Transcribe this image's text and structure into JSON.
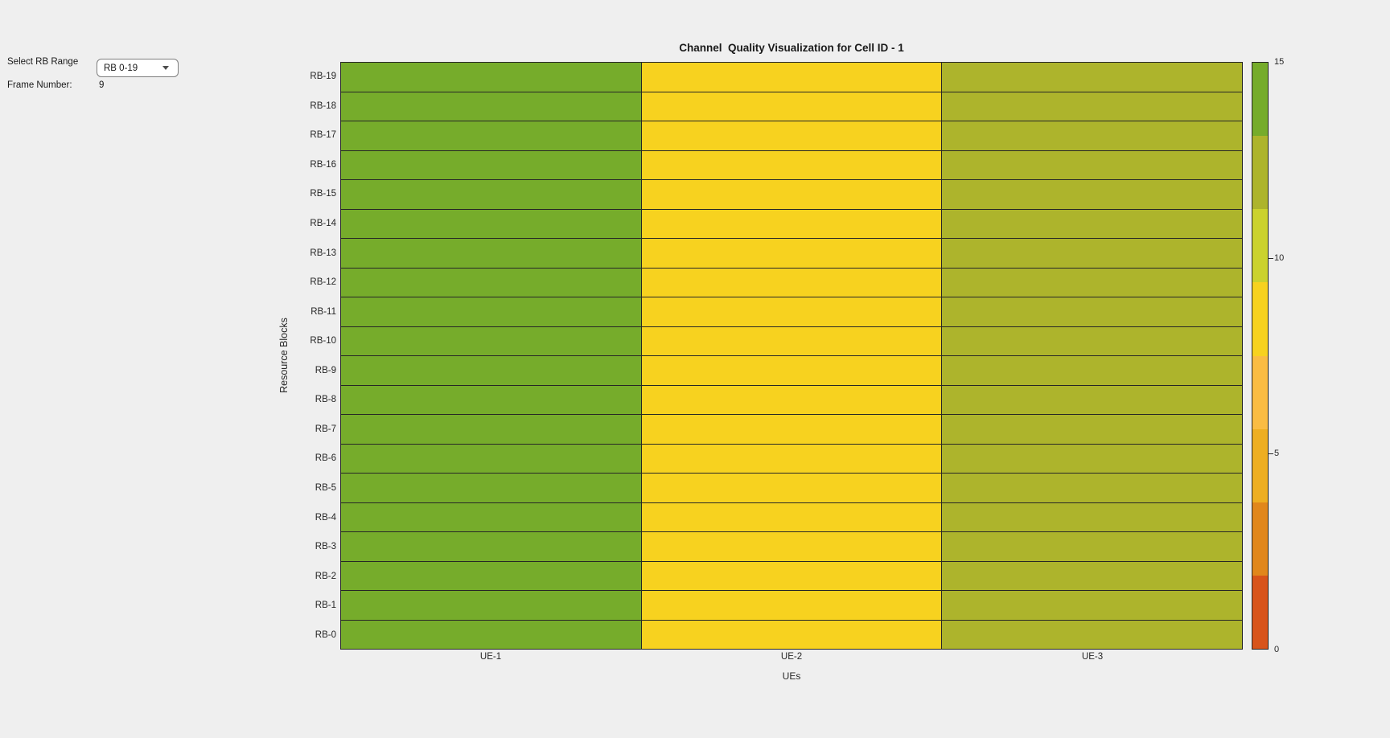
{
  "app": {
    "background_color": "#efefef"
  },
  "controls": {
    "rb_range_label": "Select RB Range",
    "rb_range_value": "RB 0-19",
    "frame_number_label": "Frame Number:",
    "frame_number_value": "9"
  },
  "chart_data": {
    "type": "heatmap",
    "title": "Channel  Quality Visualization for Cell ID - 1",
    "xlabel": "UEs",
    "ylabel": "Resource Blocks",
    "x_categories": [
      "UE-1",
      "UE-2",
      "UE-3"
    ],
    "y_categories_top_to_bottom": [
      "RB-19",
      "RB-18",
      "RB-17",
      "RB-16",
      "RB-15",
      "RB-14",
      "RB-13",
      "RB-12",
      "RB-11",
      "RB-10",
      "RB-9",
      "RB-8",
      "RB-7",
      "RB-6",
      "RB-5",
      "RB-4",
      "RB-3",
      "RB-2",
      "RB-1",
      "RB-0"
    ],
    "rows": 20,
    "cols": 3,
    "column_cell_colors": [
      "#76ac2b",
      "#f7d21f",
      "#adb42c"
    ],
    "column_cqi_estimates": [
      14,
      8,
      12
    ],
    "values_note": "each UE column is uniform across all 20 resource blocks; CQI values estimated from colorbar",
    "grid_line_color": "#262626",
    "colorbar": {
      "min": 0,
      "max": 15,
      "tick_values": [
        15,
        10,
        5,
        0
      ],
      "tick_labels": [
        "15",
        "10",
        "5",
        "0"
      ],
      "band_colors_top_to_bottom": [
        "#76ac2b",
        "#adb42c",
        "#cbd22e",
        "#f7d21f",
        "#fabc43",
        "#eeae21",
        "#e1871c",
        "#d8541b"
      ]
    }
  }
}
